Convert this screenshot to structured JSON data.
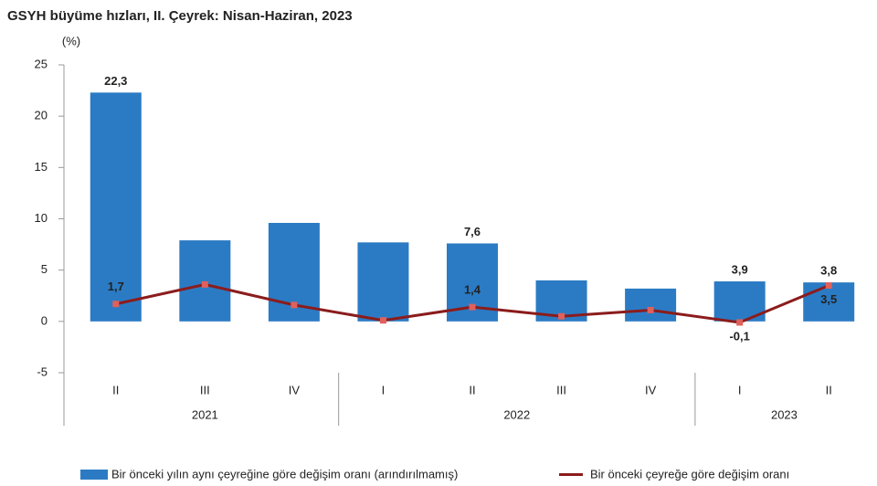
{
  "chart_data": {
    "type": "bar-line",
    "title": "GSYH büyüme hızları, II. Çeyrek: Nisan-Haziran, 2023",
    "y_label": "(%)",
    "categories": [
      "II",
      "III",
      "IV",
      "I",
      "II",
      "III",
      "IV",
      "I",
      "II"
    ],
    "groups": [
      {
        "label": "2021",
        "count": 3
      },
      {
        "label": "2022",
        "count": 4
      },
      {
        "label": "2023",
        "count": 2
      }
    ],
    "series": [
      {
        "name": "Bir önceki yılın aynı çeyreğine göre değişim oranı (arındırılmamış)",
        "kind": "bar",
        "color": "#2b7bc4",
        "values": [
          22.3,
          7.9,
          9.6,
          7.7,
          7.6,
          4.0,
          3.2,
          3.9,
          3.8
        ],
        "value_labels": [
          "22,3",
          null,
          null,
          null,
          "7,6",
          null,
          null,
          "3,9",
          "3,8"
        ]
      },
      {
        "name": "Bir önceki çeyreğe göre değişim oranı",
        "kind": "line",
        "color": "#8b1c1c",
        "marker_color": "#e0605c",
        "values": [
          1.7,
          3.6,
          1.6,
          0.1,
          1.4,
          0.5,
          1.1,
          -0.1,
          3.5
        ],
        "value_labels": [
          "1,7",
          null,
          null,
          null,
          "1,4",
          null,
          null,
          "-0,1",
          "3,5"
        ]
      }
    ],
    "ylim": [
      -5,
      25
    ],
    "yticks": [
      -5,
      0,
      5,
      10,
      15,
      20,
      25
    ],
    "grid": false
  }
}
